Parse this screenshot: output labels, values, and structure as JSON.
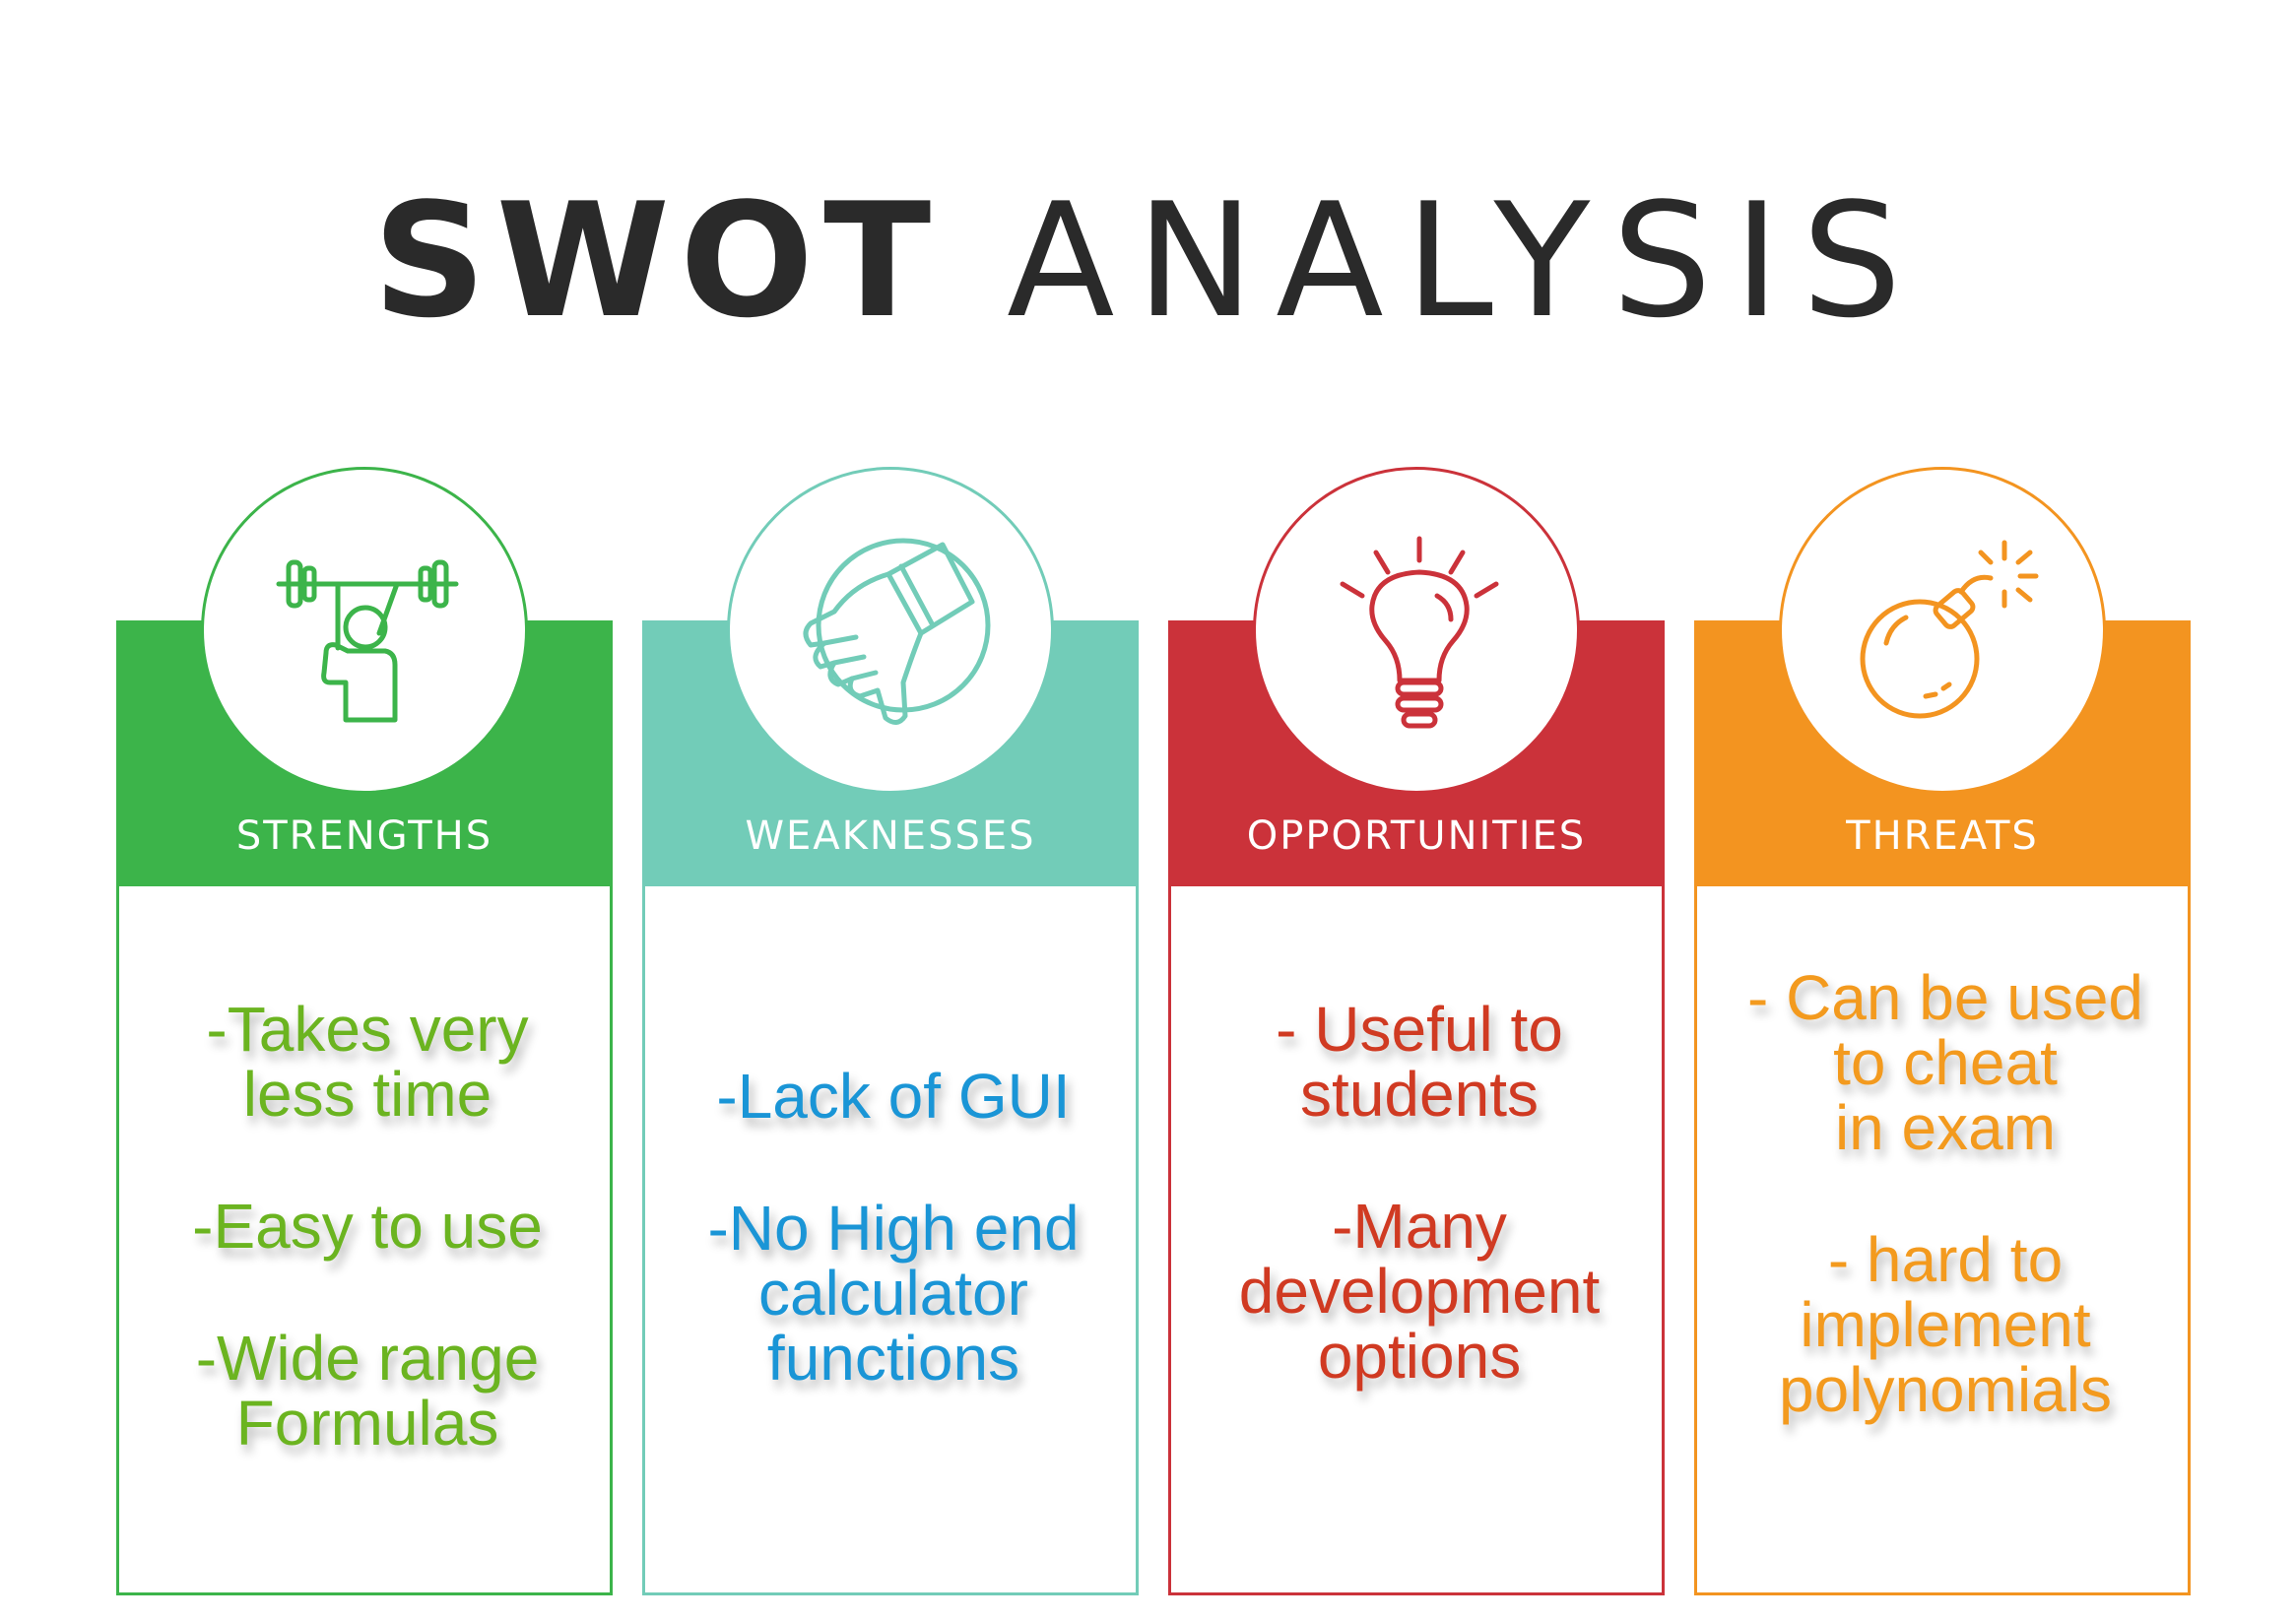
{
  "title": {
    "bold": "SWOT",
    "light": "ANALYSIS"
  },
  "columns": [
    {
      "heading": "STRENGTHS",
      "icon": "weightlifter-icon",
      "color": "#3cb44a",
      "text_color": "#6bb420",
      "points": [
        "-Takes very\n less time",
        "-Easy to use",
        "-Wide range\nFormulas"
      ]
    },
    {
      "heading": "WEAKNESSES",
      "icon": "thumbs-down-icon",
      "color": "#72ccb8",
      "text_color": "#1a95d6",
      "points": [
        "-Lack of GUI",
        "-No High end\ncalculator\nfunctions"
      ]
    },
    {
      "heading": "OPPORTUNITIES",
      "icon": "lightbulb-icon",
      "color": "#cb323a",
      "text_color": "#d03a22",
      "points": [
        "- Useful to\nstudents",
        "-Many\ndevelopment\noptions"
      ]
    },
    {
      "heading": "THREATS",
      "icon": "bomb-icon",
      "color": "#f39420",
      "text_color": "#f39a1e",
      "points": [
        "- Can be used\nto cheat\nin exam",
        "- hard to\nimplement\npolynomials"
      ]
    }
  ]
}
